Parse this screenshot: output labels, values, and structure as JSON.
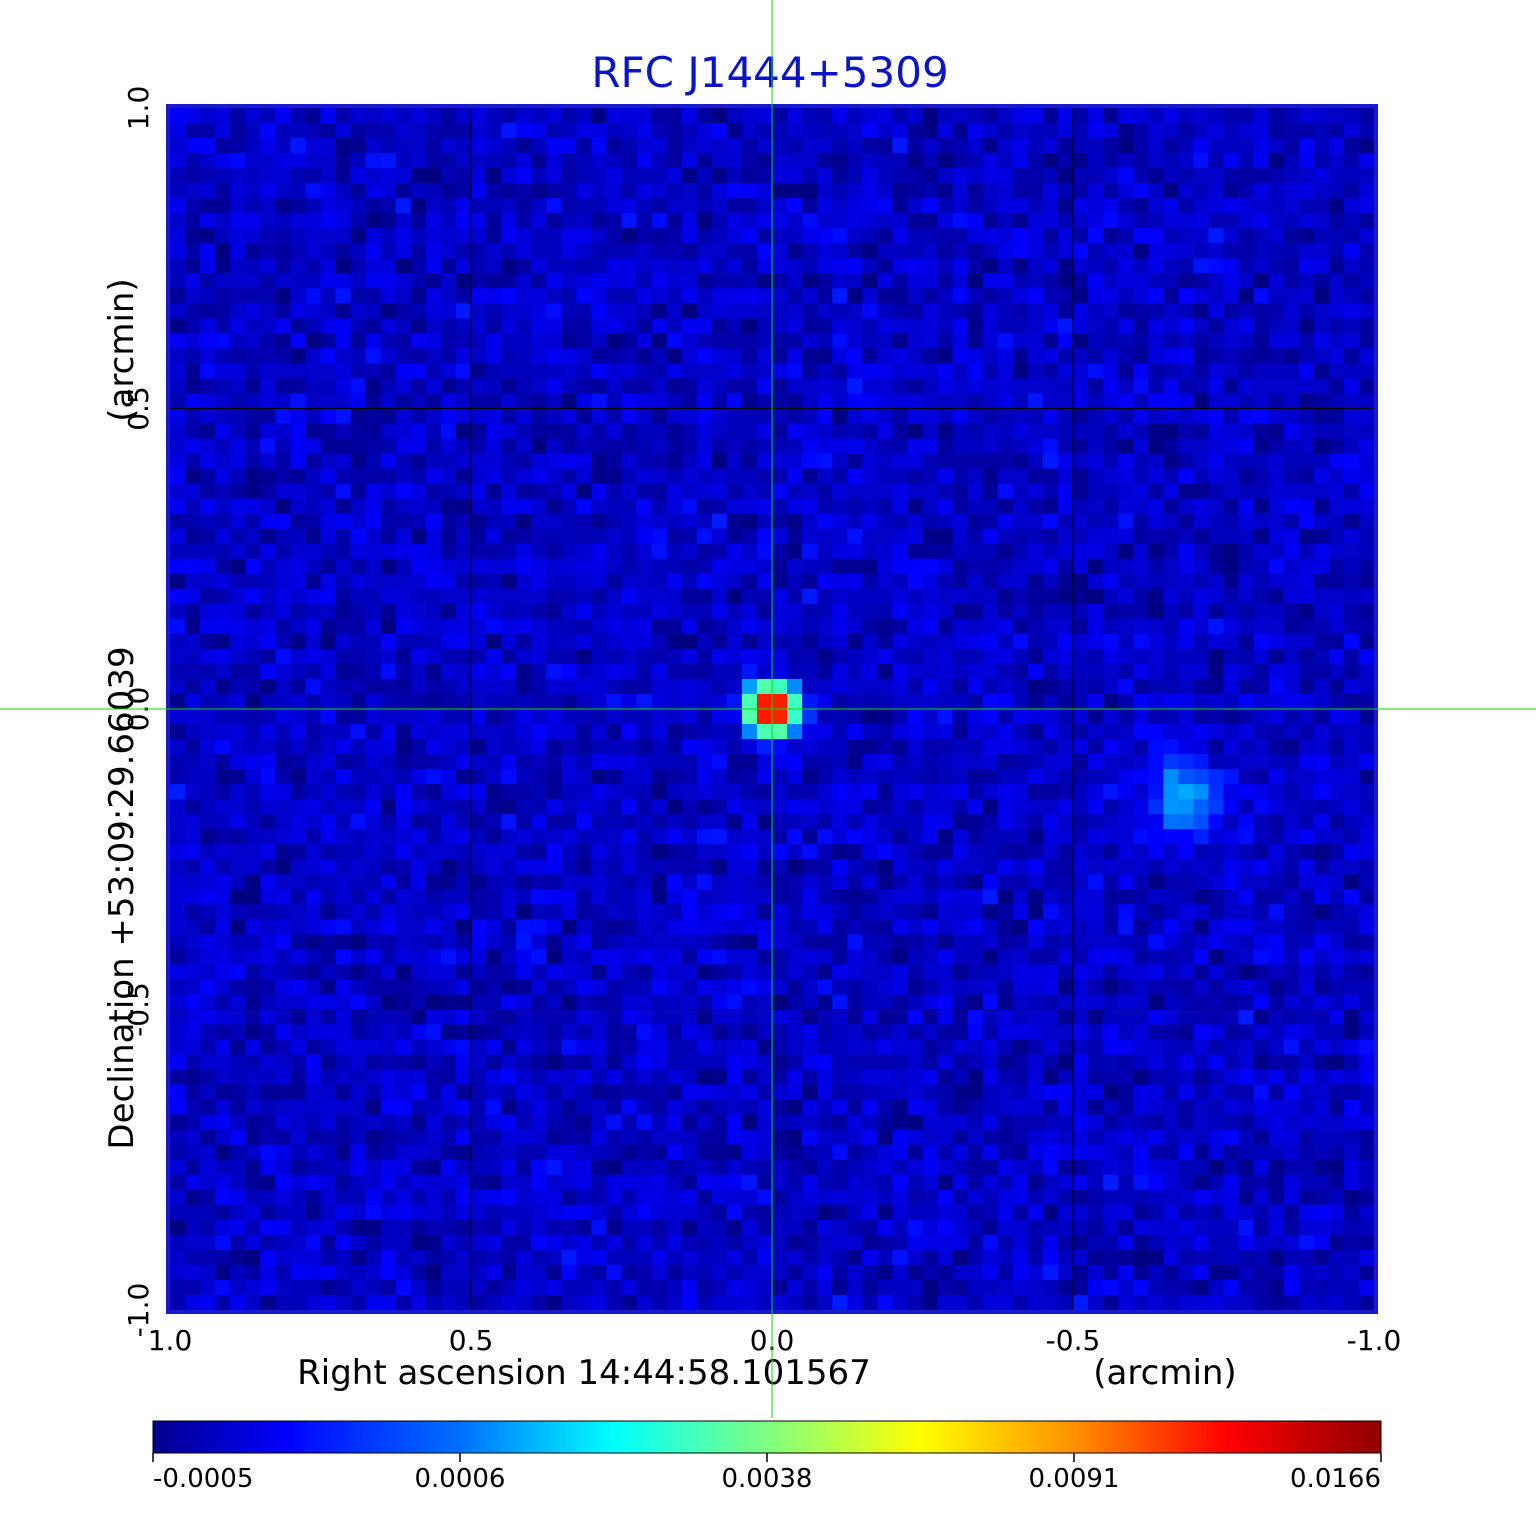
{
  "chart_data": {
    "type": "heatmap",
    "title": "RFC J1444+5309",
    "xlabel": "Right ascension  14:44:58.101567",
    "x_unit": "(arcmin)",
    "ylabel": "Declination  +53:09:29.66039",
    "y_unit": "(arcmin)",
    "xlim": [
      1.0,
      -1.0
    ],
    "ylim": [
      -1.0,
      1.0
    ],
    "x_ticks": [
      "1.0",
      "0.5",
      "0.0",
      "-0.5",
      "-1.0"
    ],
    "y_ticks": [
      "-1.0",
      "-0.5",
      "0.0",
      "0.5",
      "1.0"
    ],
    "grid": true,
    "crosshair": {
      "x": 0.0,
      "y": 0.0,
      "color": "#00dd00"
    },
    "background_level": -0.0002,
    "sources": [
      {
        "x": 0.0,
        "y": 0.0,
        "peak": 0.0166
      },
      {
        "x": -0.68,
        "y": -0.15,
        "peak": 0.0011
      }
    ],
    "colorbar": {
      "colormap": "jet",
      "ticks": [
        "-0.0005",
        "0.0006",
        "0.0038",
        "0.0091",
        "0.0166"
      ],
      "tick_values": [
        -0.0005,
        0.0006,
        0.0038,
        0.0091,
        0.0166
      ]
    },
    "colors": {
      "title": "#0a14c8",
      "frame": "#1a1acc",
      "grid": "#000000"
    }
  }
}
